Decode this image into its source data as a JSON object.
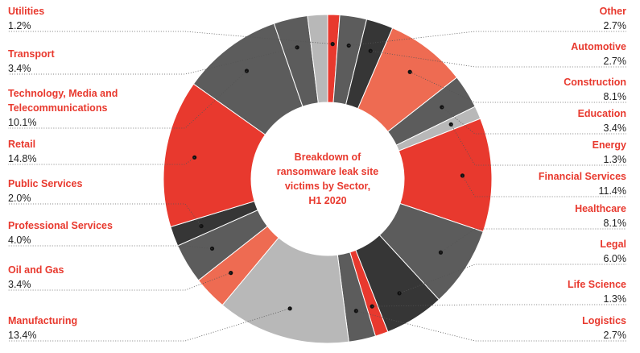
{
  "chart_data": {
    "type": "pie",
    "variant": "donut",
    "title_lines": [
      "Breakdown of",
      "ransomware leak site",
      "victims by Sector,",
      "H1 2020"
    ],
    "start_angle_deg": 0,
    "direction": "clockwise",
    "series": [
      {
        "name": "Utilities",
        "value": 1.2,
        "display": "1.2%",
        "color": "#e8392e",
        "side": "left",
        "label_lines": [
          "Utilities"
        ]
      },
      {
        "name": "Other",
        "value": 2.7,
        "display": "2.7%",
        "color": "#5c5c5c",
        "side": "right",
        "label_lines": [
          "Other"
        ]
      },
      {
        "name": "Automotive",
        "value": 2.7,
        "display": "2.7%",
        "color": "#363636",
        "side": "right",
        "label_lines": [
          "Automotive"
        ]
      },
      {
        "name": "Construction",
        "value": 8.1,
        "display": "8.1%",
        "color": "#ee6b52",
        "side": "right",
        "label_lines": [
          "Construction"
        ]
      },
      {
        "name": "Education",
        "value": 3.4,
        "display": "3.4%",
        "color": "#5c5c5c",
        "side": "right",
        "label_lines": [
          "Education"
        ]
      },
      {
        "name": "Energy",
        "value": 1.3,
        "display": "1.3%",
        "color": "#b8b8b8",
        "side": "right",
        "label_lines": [
          "Energy"
        ]
      },
      {
        "name": "Financial Services",
        "value": 11.4,
        "display": "11.4%",
        "color": "#e8392e",
        "side": "right",
        "label_lines": [
          "Financial Services"
        ]
      },
      {
        "name": "Healthcare",
        "value": 8.1,
        "display": "8.1%",
        "color": "#5c5c5c",
        "side": "right",
        "label_lines": [
          "Healthcare"
        ]
      },
      {
        "name": "Legal",
        "value": 6.0,
        "display": "6.0%",
        "color": "#363636",
        "side": "right",
        "label_lines": [
          "Legal"
        ]
      },
      {
        "name": "Life Science",
        "value": 1.3,
        "display": "1.3%",
        "color": "#e8392e",
        "side": "right",
        "label_lines": [
          "Life Science"
        ]
      },
      {
        "name": "Logistics",
        "value": 2.7,
        "display": "2.7%",
        "color": "#5c5c5c",
        "side": "right",
        "label_lines": [
          "Logistics"
        ]
      },
      {
        "name": "Manufacturing",
        "value": 13.4,
        "display": "13.4%",
        "color": "#b8b8b8",
        "side": "left",
        "label_lines": [
          "Manufacturing"
        ]
      },
      {
        "name": "Oil and Gas",
        "value": 3.4,
        "display": "3.4%",
        "color": "#ee6b52",
        "side": "left",
        "label_lines": [
          "Oil and Gas"
        ]
      },
      {
        "name": "Professional Services",
        "value": 4.0,
        "display": "4.0%",
        "color": "#5c5c5c",
        "side": "left",
        "label_lines": [
          "Professional Services"
        ]
      },
      {
        "name": "Public Services",
        "value": 2.0,
        "display": "2.0%",
        "color": "#363636",
        "side": "left",
        "label_lines": [
          "Public Services"
        ]
      },
      {
        "name": "Retail",
        "value": 14.8,
        "display": "14.8%",
        "color": "#e8392e",
        "side": "left",
        "label_lines": [
          "Retail"
        ]
      },
      {
        "name": "Technology, Media and Telecommunications",
        "value": 10.1,
        "display": "10.1%",
        "color": "#5c5c5c",
        "side": "left",
        "label_lines": [
          "Technology, Media and",
          "Telecommunications"
        ]
      },
      {
        "name": "Transport",
        "value": 3.4,
        "display": "3.4%",
        "color": "#5c5c5c",
        "side": "left",
        "label_lines": [
          "Transport"
        ]
      },
      {
        "name": "Unlabeled",
        "value": 2.0,
        "display": "",
        "color": "#b8b8b8",
        "side": "none",
        "label_lines": []
      }
    ]
  }
}
